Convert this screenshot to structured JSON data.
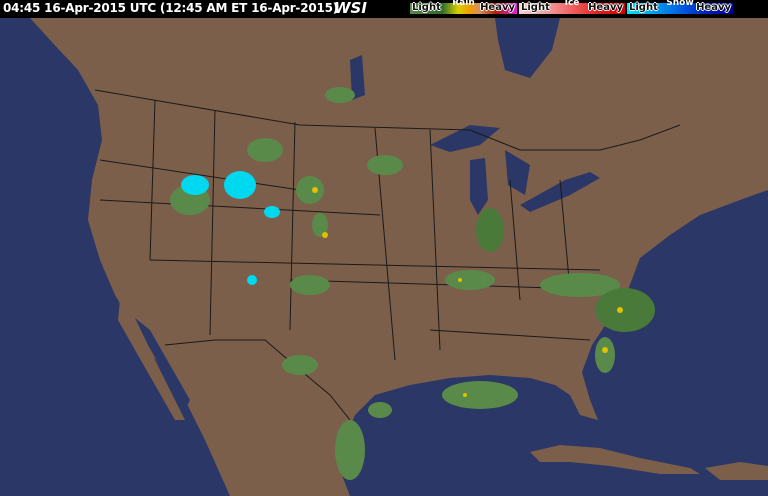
{
  "header": {
    "title": "04:45 16-Apr-2015 UTC  (12:45 AM ET 16-Apr-2015)",
    "logo": "WSI"
  },
  "legend": [
    {
      "name": "Rain",
      "light": "Light",
      "heavy": "Heavy",
      "gradient": [
        "#5a8a4a",
        "#2e6a2a",
        "#d8d000",
        "#f0a000",
        "#d87030",
        "#b02000",
        "#e020e0"
      ]
    },
    {
      "name": "Ice",
      "light": "Light",
      "heavy": "Heavy",
      "gradient": [
        "#f8d0d0",
        "#f0a0a0",
        "#f06060",
        "#e02020",
        "#d00000"
      ]
    },
    {
      "name": "Snow",
      "light": "Light",
      "heavy": "Heavy",
      "gradient": [
        "#00e8f8",
        "#00a0f0",
        "#0060e0",
        "#0020c0",
        "#000090"
      ]
    }
  ],
  "colors": {
    "land": "#7b5f4b",
    "water": "#2b3766",
    "borders": "#1a1a1a"
  }
}
